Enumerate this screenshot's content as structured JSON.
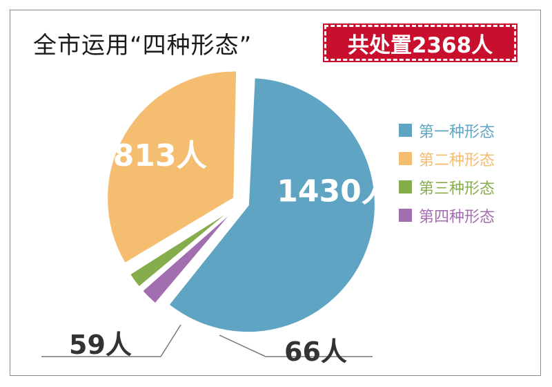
{
  "header": {
    "title": "全市运用“四种形态”",
    "badge": "共处置2368人"
  },
  "chart_data": {
    "type": "pie",
    "title": "全市运用“四种形态”",
    "total_label": "共处置2368人",
    "unit": "人",
    "series": [
      {
        "name": "第一种形态",
        "value": 1430,
        "label": "1430人",
        "color": "#5fa5c3"
      },
      {
        "name": "第二种形态",
        "value": 813,
        "label": "813人",
        "color": "#f4bd6f"
      },
      {
        "name": "第三种形态",
        "value": 59,
        "label": "59人",
        "color": "#86ad4c"
      },
      {
        "name": "第四种形态",
        "value": 66,
        "label": "66人",
        "color": "#a36eb0"
      }
    ],
    "legend_position": "right"
  },
  "colors": {
    "badge_bg": "#c8102e",
    "label_dark": "#333333"
  }
}
